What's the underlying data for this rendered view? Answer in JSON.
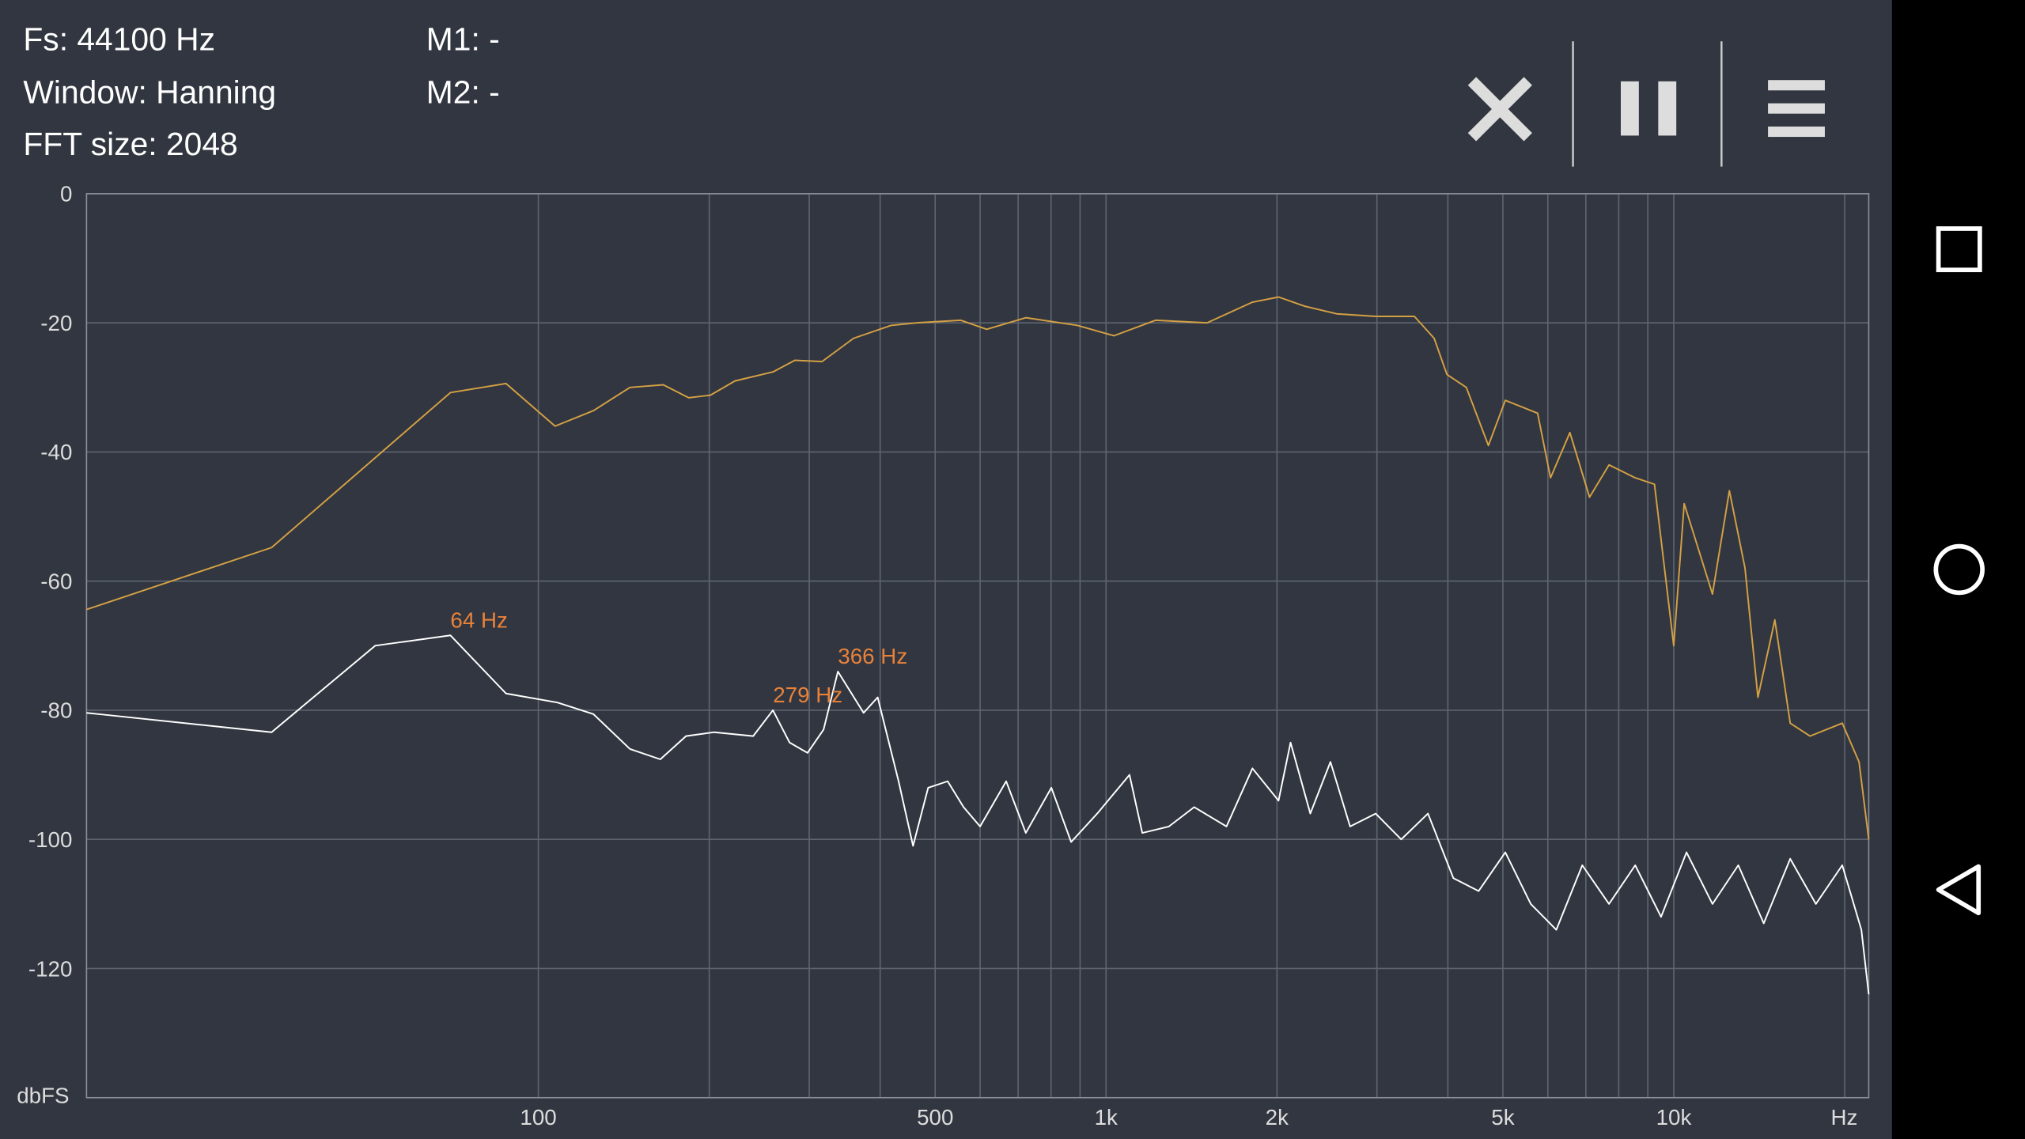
{
  "header": {
    "fs": "Fs: 44100 Hz",
    "window": "Window: Hanning",
    "fft": "FFT size: 2048",
    "m1": "M1: -",
    "m2": "M2: -"
  },
  "chart_data": {
    "type": "line",
    "xlog": true,
    "grid": true,
    "xlim": [
      16,
      22050
    ],
    "ylim": [
      -140,
      0
    ],
    "xticks": [
      100,
      500,
      {
        "value": 1000,
        "label": "1k"
      },
      {
        "value": 2000,
        "label": "2k"
      },
      {
        "value": 5000,
        "label": "5k"
      },
      {
        "value": 10000,
        "label": "10k"
      }
    ],
    "xgrid": [
      200,
      300,
      400,
      600,
      700,
      800,
      900,
      3000,
      4000,
      6000,
      7000,
      8000,
      9000,
      20000
    ],
    "yticks": [
      0,
      -20,
      -40,
      -60,
      -80,
      -100,
      -120
    ],
    "xlabel": "Hz",
    "ylabel": "dbFS",
    "series": [
      {
        "color": "#d4a044",
        "x": [
          16,
          33.9,
          70,
          87.7,
          107,
          125,
          145,
          166,
          184,
          201,
          222,
          259,
          283,
          316,
          359,
          418,
          464,
          555,
          616,
          722,
          891,
          1032,
          1222,
          1507,
          1811,
          2013,
          2234,
          2547,
          2985,
          3493,
          3784,
          3985,
          4311,
          4716,
          5050,
          5757,
          6067,
          6563,
          7107,
          7690,
          8551,
          9245,
          10000,
          10430,
          11700,
          12530,
          13350,
          14070,
          15070,
          16040,
          17370,
          19800,
          21200,
          22050
        ],
        "values": [
          -64.4,
          -54.8,
          -30.8,
          -29.4,
          -36,
          -33.6,
          -30,
          -29.6,
          -31.6,
          -31.2,
          -29,
          -27.6,
          -25.8,
          -26,
          -22.4,
          -20.4,
          -20,
          -19.6,
          -21,
          -19.2,
          -20.4,
          -22,
          -19.6,
          -20,
          -16.8,
          -16,
          -17.4,
          -18.6,
          -19,
          -19,
          -22.4,
          -28,
          -30,
          -39,
          -32,
          -34,
          -44,
          -37,
          -47,
          -42,
          -44,
          -45,
          -70,
          -48,
          -62,
          -46,
          -58,
          -78,
          -66,
          -82,
          -84,
          -82,
          -88,
          -100
        ]
      },
      {
        "color": "#ffffff",
        "x": [
          16,
          33.9,
          51.6,
          70,
          87.7,
          108,
          125,
          145,
          164,
          182,
          204,
          239,
          259,
          277,
          298,
          318,
          337,
          374,
          396,
          431,
          457,
          486,
          526,
          561,
          600,
          667,
          722,
          801,
          868,
          965,
          1100,
          1158,
          1290,
          1430,
          1630,
          1811,
          2013,
          2113,
          2290,
          2485,
          2690,
          2985,
          3310,
          3690,
          4090,
          4530,
          5050,
          5600,
          6210,
          6900,
          7690,
          8551,
          9500,
          10530,
          11700,
          12990,
          14400,
          16040,
          17800,
          19800,
          21400,
          22050
        ],
        "values": [
          -80.4,
          -83.4,
          -70,
          -68.4,
          -77.4,
          -78.8,
          -80.6,
          -86,
          -87.6,
          -84,
          -83.4,
          -84,
          -80,
          -85,
          -86.6,
          -83,
          -74,
          -80.4,
          -78,
          -91,
          -101,
          -92,
          -91,
          -95,
          -98,
          -91,
          -99,
          -92,
          -100.4,
          -96,
          -90,
          -99,
          -98,
          -95,
          -98,
          -89,
          -94,
          -85,
          -96,
          -88,
          -98,
          -96,
          -100,
          -96,
          -106,
          -108,
          -102,
          -110,
          -114,
          -104,
          -110,
          -104,
          -112,
          -102,
          -110,
          -104,
          -113,
          -103,
          -110,
          -104,
          -114,
          -124
        ]
      }
    ],
    "annotations": [
      {
        "label": "64 Hz",
        "x": 70,
        "y": -68.4,
        "color": "#e8823a"
      },
      {
        "label": "279 Hz",
        "x": 259,
        "y": -80,
        "color": "#e8823a"
      },
      {
        "label": "366 Hz",
        "x": 337,
        "y": -74,
        "color": "#e8823a"
      }
    ]
  }
}
